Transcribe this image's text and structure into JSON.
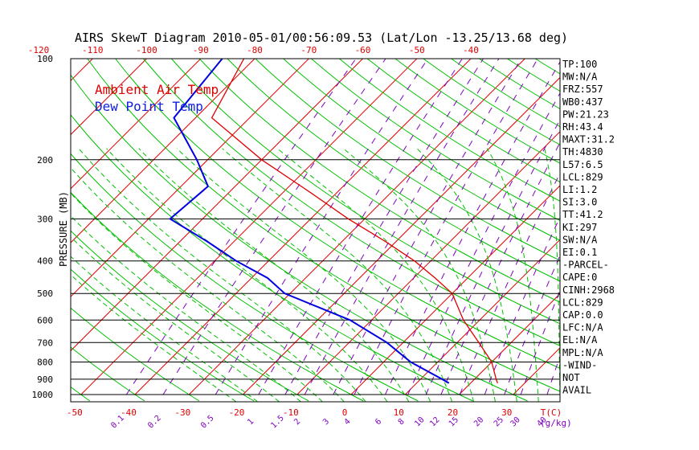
{
  "chart_data": {
    "type": "line",
    "title": "AIRS SkewT Diagram 2010-05-01/00:56:09.53 (Lat/Lon -13.25/13.68 deg)",
    "ylabel": "PRESSURE (MB)",
    "bottom_axis_unit": "T(C)",
    "mixing_ratio_unit": "(g/kg)",
    "pressure_levels": [
      100,
      200,
      300,
      400,
      500,
      600,
      700,
      800,
      900,
      1000
    ],
    "pressure_tick_labels": [
      "100",
      "200",
      "300",
      "400",
      "500",
      "600",
      "700",
      "800",
      "900",
      "1000"
    ],
    "top_temp_ticks": [
      -120,
      -110,
      -100,
      -90,
      -80,
      -70,
      -60,
      -50,
      -40
    ],
    "top_temp_labels": [
      "-120",
      "-110",
      "-100",
      "-90",
      "-80",
      "-70",
      "-60",
      "-50",
      "-40"
    ],
    "bottom_temp_ticks": [
      -50,
      -40,
      -30,
      -20,
      -10,
      0,
      10,
      20,
      30
    ],
    "bottom_temp_labels": [
      "-50",
      "-40",
      "-30",
      "-20",
      "-10",
      "0",
      "10",
      "20",
      "30"
    ],
    "mixing_ratio_values": [
      0.1,
      0.2,
      0.5,
      1,
      1.5,
      2,
      3,
      4,
      6,
      8,
      10,
      12,
      15,
      20,
      25,
      30,
      40
    ],
    "mixing_ratio_labels": [
      "0.1",
      "0.2",
      "0.5",
      "1",
      "1.5",
      "2",
      "3",
      "4",
      "6",
      "8",
      "10",
      "12",
      "15",
      "20",
      "25",
      "30",
      "40"
    ],
    "legend": {
      "entries": [
        "Ambient Air Temp",
        "Dew Point Temp"
      ],
      "placement": "top-left"
    },
    "series": [
      {
        "name": "Ambient Air Temp",
        "color": "#e00000",
        "points": [
          {
            "p": 100,
            "t": -82
          },
          {
            "p": 150,
            "t": -77
          },
          {
            "p": 200,
            "t": -60
          },
          {
            "p": 250,
            "t": -45
          },
          {
            "p": 300,
            "t": -33
          },
          {
            "p": 350,
            "t": -22
          },
          {
            "p": 400,
            "t": -13
          },
          {
            "p": 450,
            "t": -6
          },
          {
            "p": 500,
            "t": 0
          },
          {
            "p": 600,
            "t": 7
          },
          {
            "p": 700,
            "t": 14
          },
          {
            "p": 800,
            "t": 20
          },
          {
            "p": 900,
            "t": 24
          },
          {
            "p": 925,
            "t": 25
          }
        ]
      },
      {
        "name": "Dew Point Temp",
        "color": "#0000e0",
        "points": [
          {
            "p": 100,
            "t": -86
          },
          {
            "p": 150,
            "t": -84
          },
          {
            "p": 200,
            "t": -72
          },
          {
            "p": 240,
            "t": -65
          },
          {
            "p": 300,
            "t": -66
          },
          {
            "p": 350,
            "t": -55
          },
          {
            "p": 400,
            "t": -46
          },
          {
            "p": 450,
            "t": -37
          },
          {
            "p": 500,
            "t": -31
          },
          {
            "p": 600,
            "t": -14
          },
          {
            "p": 700,
            "t": -3
          },
          {
            "p": 800,
            "t": 5
          },
          {
            "p": 900,
            "t": 14
          },
          {
            "p": 925,
            "t": 16
          }
        ]
      }
    ],
    "grid": true,
    "background_lines": {
      "isotherms_color": "#e00000",
      "dry_adiabats_color": "#00c000",
      "moist_adiabats_color": "#00c000",
      "mixing_ratio_color": "#8000c0"
    }
  },
  "indices": [
    "TP:100",
    "MW:N/A",
    "FRZ:557",
    "WB0:437",
    "PW:21.23",
    "RH:43.4",
    "MAXT:31.2",
    "TH:4830",
    "L57:6.5",
    "LCL:829",
    "LI:1.2",
    "SI:3.0",
    "TT:41.2",
    "KI:297",
    "SW:N/A",
    "EI:0.1",
    "-PARCEL-",
    "CAPE:0",
    "CINH:2968",
    "LCL:829",
    "CAP:0.0",
    "LFC:N/A",
    "EL:N/A",
    "MPL:N/A",
    "-WIND-",
    "NOT",
    "AVAIL"
  ]
}
